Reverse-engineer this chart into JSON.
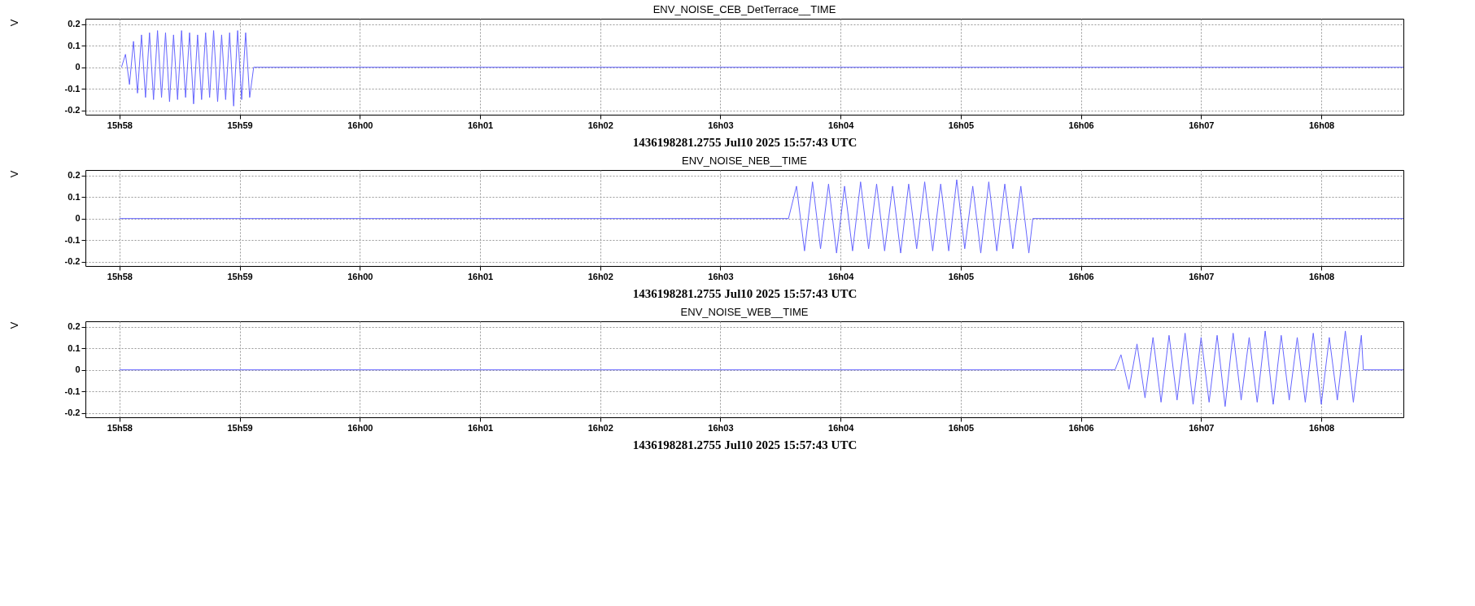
{
  "chart_data": [
    {
      "type": "line",
      "title": "ENV_NOISE_CEB_DetTerrace__TIME",
      "ylabel": "V",
      "xlabel": "1436198281.2755 Jul10 2025 15:57:43 UTC",
      "xlim": [
        "2025-07-10T15:57:43",
        "2025-07-10T16:08:41"
      ],
      "ylim": [
        -0.22,
        0.225
      ],
      "yticks": [
        -0.2,
        -0.1,
        0,
        0.1,
        0.2
      ],
      "xticks": [
        {
          "value": "2025-07-10T15:58",
          "label": "15h58"
        },
        {
          "value": "2025-07-10T15:59",
          "label": "15h59"
        },
        {
          "value": "2025-07-10T16:00",
          "label": "16h00"
        },
        {
          "value": "2025-07-10T16:01",
          "label": "16h01"
        },
        {
          "value": "2025-07-10T16:02",
          "label": "16h02"
        },
        {
          "value": "2025-07-10T16:03",
          "label": "16h03"
        },
        {
          "value": "2025-07-10T16:04",
          "label": "16h04"
        },
        {
          "value": "2025-07-10T16:05",
          "label": "16h05"
        },
        {
          "value": "2025-07-10T16:06",
          "label": "16h06"
        },
        {
          "value": "2025-07-10T16:07",
          "label": "16h07"
        },
        {
          "value": "2025-07-10T16:08",
          "label": "16h08"
        }
      ],
      "grid": true,
      "series": [
        {
          "color": "#6666ff",
          "x": [
            "2025-07-10T15:58:01",
            "2025-07-10T15:58:03",
            "2025-07-10T15:58:05",
            "2025-07-10T15:58:07",
            "2025-07-10T15:58:09",
            "2025-07-10T15:58:11",
            "2025-07-10T15:58:13",
            "2025-07-10T15:58:15",
            "2025-07-10T15:58:17",
            "2025-07-10T15:58:19",
            "2025-07-10T15:58:21",
            "2025-07-10T15:58:23",
            "2025-07-10T15:58:25",
            "2025-07-10T15:58:27",
            "2025-07-10T15:58:29",
            "2025-07-10T15:58:31",
            "2025-07-10T15:58:33",
            "2025-07-10T15:58:35",
            "2025-07-10T15:58:37",
            "2025-07-10T15:58:39",
            "2025-07-10T15:58:41",
            "2025-07-10T15:58:43",
            "2025-07-10T15:58:45",
            "2025-07-10T15:58:47",
            "2025-07-10T15:58:49",
            "2025-07-10T15:58:51",
            "2025-07-10T15:58:53",
            "2025-07-10T15:58:55",
            "2025-07-10T15:58:57",
            "2025-07-10T15:58:59",
            "2025-07-10T15:59:01",
            "2025-07-10T15:59:03",
            "2025-07-10T15:59:05",
            "2025-07-10T15:59:07",
            "2025-07-10T16:08:41"
          ],
          "values": [
            0,
            0.06,
            -0.08,
            0.12,
            -0.12,
            0.15,
            -0.14,
            0.16,
            -0.15,
            0.17,
            -0.14,
            0.16,
            -0.16,
            0.15,
            -0.15,
            0.17,
            -0.14,
            0.16,
            -0.17,
            0.15,
            -0.15,
            0.16,
            -0.14,
            0.17,
            -0.16,
            0.15,
            -0.15,
            0.16,
            -0.18,
            0.17,
            -0.15,
            0.16,
            -0.14,
            0,
            0
          ]
        }
      ]
    },
    {
      "type": "line",
      "title": "ENV_NOISE_NEB__TIME",
      "ylabel": "V",
      "xlabel": "1436198281.2755 Jul10 2025 15:57:43 UTC",
      "xlim": [
        "2025-07-10T15:57:43",
        "2025-07-10T16:08:41"
      ],
      "ylim": [
        -0.22,
        0.225
      ],
      "yticks": [
        -0.2,
        -0.1,
        0,
        0.1,
        0.2
      ],
      "xticks": [
        {
          "value": "2025-07-10T15:58",
          "label": "15h58"
        },
        {
          "value": "2025-07-10T15:59",
          "label": "15h59"
        },
        {
          "value": "2025-07-10T16:00",
          "label": "16h00"
        },
        {
          "value": "2025-07-10T16:01",
          "label": "16h01"
        },
        {
          "value": "2025-07-10T16:02",
          "label": "16h02"
        },
        {
          "value": "2025-07-10T16:03",
          "label": "16h03"
        },
        {
          "value": "2025-07-10T16:04",
          "label": "16h04"
        },
        {
          "value": "2025-07-10T16:05",
          "label": "16h05"
        },
        {
          "value": "2025-07-10T16:06",
          "label": "16h06"
        },
        {
          "value": "2025-07-10T16:07",
          "label": "16h07"
        },
        {
          "value": "2025-07-10T16:08",
          "label": "16h08"
        }
      ],
      "grid": true,
      "series": [
        {
          "color": "#6666ff",
          "x": [
            "2025-07-10T15:58:00",
            "2025-07-10T16:03:34",
            "2025-07-10T16:03:38",
            "2025-07-10T16:03:42",
            "2025-07-10T16:03:46",
            "2025-07-10T16:03:50",
            "2025-07-10T16:03:54",
            "2025-07-10T16:03:58",
            "2025-07-10T16:04:02",
            "2025-07-10T16:04:06",
            "2025-07-10T16:04:10",
            "2025-07-10T16:04:14",
            "2025-07-10T16:04:18",
            "2025-07-10T16:04:22",
            "2025-07-10T16:04:26",
            "2025-07-10T16:04:30",
            "2025-07-10T16:04:34",
            "2025-07-10T16:04:38",
            "2025-07-10T16:04:42",
            "2025-07-10T16:04:46",
            "2025-07-10T16:04:50",
            "2025-07-10T16:04:54",
            "2025-07-10T16:04:58",
            "2025-07-10T16:05:02",
            "2025-07-10T16:05:06",
            "2025-07-10T16:05:10",
            "2025-07-10T16:05:14",
            "2025-07-10T16:05:18",
            "2025-07-10T16:05:22",
            "2025-07-10T16:05:26",
            "2025-07-10T16:05:30",
            "2025-07-10T16:05:34",
            "2025-07-10T16:05:36",
            "2025-07-10T16:08:41"
          ],
          "values": [
            0,
            0,
            0.15,
            -0.15,
            0.17,
            -0.14,
            0.16,
            -0.16,
            0.15,
            -0.15,
            0.17,
            -0.14,
            0.16,
            -0.15,
            0.15,
            -0.16,
            0.16,
            -0.14,
            0.17,
            -0.15,
            0.16,
            -0.15,
            0.18,
            -0.14,
            0.15,
            -0.16,
            0.17,
            -0.15,
            0.16,
            -0.14,
            0.15,
            -0.16,
            0,
            0
          ]
        }
      ]
    },
    {
      "type": "line",
      "title": "ENV_NOISE_WEB__TIME",
      "ylabel": "V",
      "xlabel": "1436198281.2755 Jul10 2025 15:57:43 UTC",
      "xlim": [
        "2025-07-10T15:57:43",
        "2025-07-10T16:08:41"
      ],
      "ylim": [
        -0.22,
        0.225
      ],
      "yticks": [
        -0.2,
        -0.1,
        0,
        0.1,
        0.2
      ],
      "xticks": [
        {
          "value": "2025-07-10T15:58",
          "label": "15h58"
        },
        {
          "value": "2025-07-10T15:59",
          "label": "15h59"
        },
        {
          "value": "2025-07-10T16:00",
          "label": "16h00"
        },
        {
          "value": "2025-07-10T16:01",
          "label": "16h01"
        },
        {
          "value": "2025-07-10T16:02",
          "label": "16h02"
        },
        {
          "value": "2025-07-10T16:03",
          "label": "16h03"
        },
        {
          "value": "2025-07-10T16:04",
          "label": "16h04"
        },
        {
          "value": "2025-07-10T16:05",
          "label": "16h05"
        },
        {
          "value": "2025-07-10T16:06",
          "label": "16h06"
        },
        {
          "value": "2025-07-10T16:07",
          "label": "16h07"
        },
        {
          "value": "2025-07-10T16:08",
          "label": "16h08"
        }
      ],
      "grid": true,
      "series": [
        {
          "color": "#6666ff",
          "x": [
            "2025-07-10T15:58:00",
            "2025-07-10T16:06:17",
            "2025-07-10T16:06:20",
            "2025-07-10T16:06:24",
            "2025-07-10T16:06:28",
            "2025-07-10T16:06:32",
            "2025-07-10T16:06:36",
            "2025-07-10T16:06:40",
            "2025-07-10T16:06:44",
            "2025-07-10T16:06:48",
            "2025-07-10T16:06:52",
            "2025-07-10T16:06:56",
            "2025-07-10T16:07:00",
            "2025-07-10T16:07:04",
            "2025-07-10T16:07:08",
            "2025-07-10T16:07:12",
            "2025-07-10T16:07:16",
            "2025-07-10T16:07:20",
            "2025-07-10T16:07:24",
            "2025-07-10T16:07:28",
            "2025-07-10T16:07:32",
            "2025-07-10T16:07:36",
            "2025-07-10T16:07:40",
            "2025-07-10T16:07:44",
            "2025-07-10T16:07:48",
            "2025-07-10T16:07:52",
            "2025-07-10T16:07:56",
            "2025-07-10T16:08:00",
            "2025-07-10T16:08:04",
            "2025-07-10T16:08:08",
            "2025-07-10T16:08:12",
            "2025-07-10T16:08:16",
            "2025-07-10T16:08:20",
            "2025-07-10T16:08:21",
            "2025-07-10T16:08:41"
          ],
          "values": [
            0,
            0,
            0.07,
            -0.09,
            0.12,
            -0.13,
            0.15,
            -0.15,
            0.16,
            -0.14,
            0.17,
            -0.16,
            0.15,
            -0.15,
            0.16,
            -0.17,
            0.17,
            -0.14,
            0.15,
            -0.15,
            0.18,
            -0.16,
            0.16,
            -0.14,
            0.15,
            -0.15,
            0.17,
            -0.16,
            0.15,
            -0.14,
            0.18,
            -0.15,
            0.16,
            0,
            0
          ]
        }
      ]
    }
  ]
}
